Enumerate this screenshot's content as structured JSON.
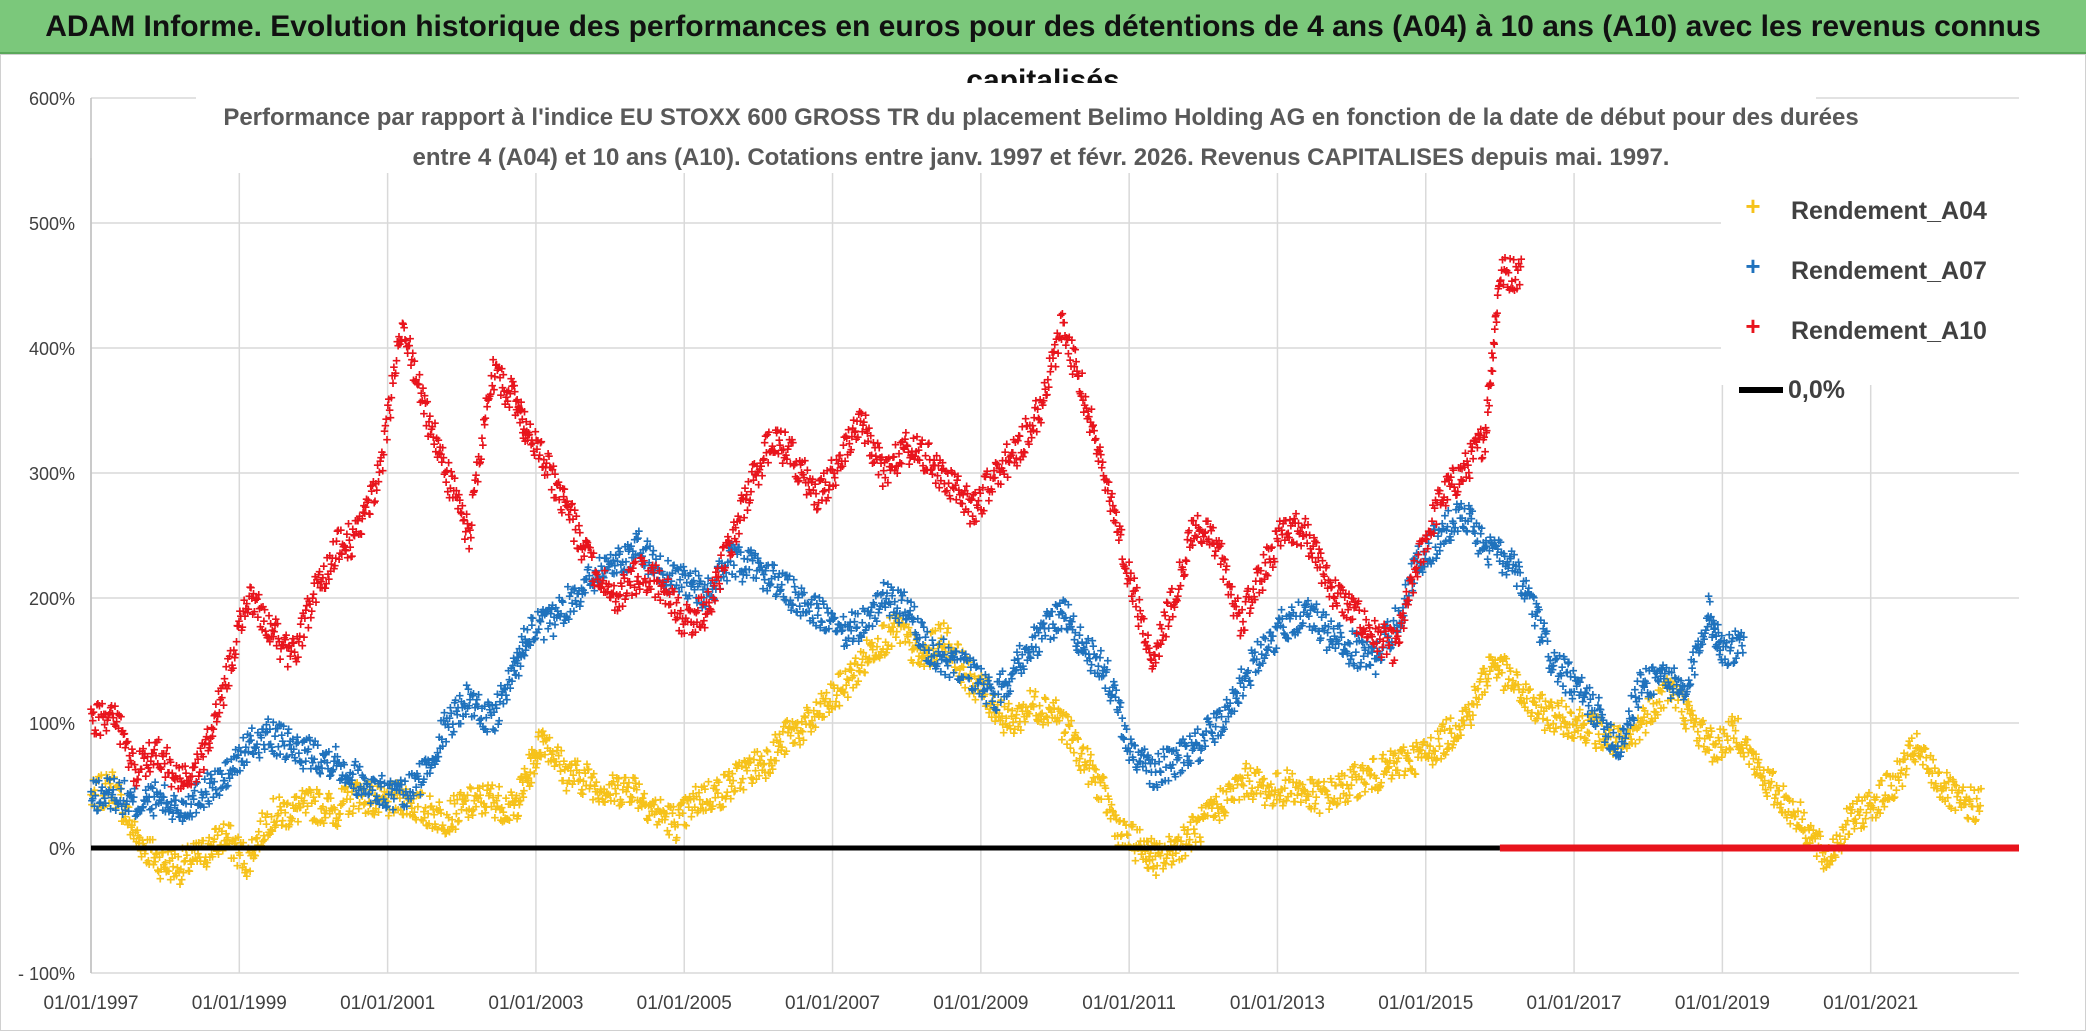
{
  "header": {
    "title": "ADAM Informe. Evolution historique des performances en euros pour des détentions de 4 ans (A04) à 10 ans (A10) avec les revenus connus capitalisés"
  },
  "colors": {
    "banner": "#7bc87b",
    "A04": "#f6c21a",
    "A07": "#1f72bd",
    "A10": "#e8141c",
    "zero": "#000000",
    "grid": "#d9d9d9"
  },
  "chart_data": {
    "type": "scatter",
    "title_line1": "Performance par rapport à l'indice EU STOXX 600 GROSS TR  du placement Belimo Holding AG en fonction de la date de début pour des durées",
    "title_line2": "entre 4 (A04) et 10 ans (A10). Cotations entre janv. 1997 et févr. 2026. Revenus CAPITALISES depuis mai. 1997.",
    "xlabel": "",
    "ylabel": "",
    "x_range": [
      1997.0,
      2023.0
    ],
    "ylim": [
      -100,
      600
    ],
    "y_ticks": [
      -100,
      0,
      100,
      200,
      300,
      400,
      500,
      600
    ],
    "y_tick_labels": [
      "- 100%",
      "0%",
      "100%",
      "200%",
      "300%",
      "400%",
      "500%",
      "600%"
    ],
    "x_ticks": [
      1997,
      1999,
      2001,
      2003,
      2005,
      2007,
      2009,
      2011,
      2013,
      2015,
      2017,
      2019,
      2021
    ],
    "x_tick_labels": [
      "01/01/1997",
      "01/01/1999",
      "01/01/2001",
      "01/01/2003",
      "01/01/2005",
      "01/01/2007",
      "01/01/2009",
      "01/01/2011",
      "01/01/2013",
      "01/01/2015",
      "01/01/2017",
      "01/01/2019",
      "01/01/2021"
    ],
    "legend_position": "top-right",
    "series": [
      {
        "name": "Rendement_A04",
        "x": [
          1997.0,
          1997.3,
          1997.6,
          1997.9,
          1998.2,
          1998.5,
          1998.8,
          1999.1,
          1999.4,
          1999.7,
          2000.0,
          2000.3,
          2000.6,
          2000.9,
          2001.2,
          2001.5,
          2001.8,
          2002.1,
          2002.4,
          2002.7,
          2002.9,
          2003.1,
          2003.4,
          2003.7,
          2004.0,
          2004.3,
          2004.6,
          2004.9,
          2005.2,
          2005.5,
          2005.8,
          2006.1,
          2006.4,
          2006.7,
          2007.0,
          2007.3,
          2007.6,
          2007.9,
          2008.2,
          2008.5,
          2008.8,
          2009.1,
          2009.4,
          2009.7,
          2010.0,
          2010.3,
          2010.6,
          2010.9,
          2011.2,
          2011.4,
          2011.7,
          2012.0,
          2012.3,
          2012.6,
          2012.9,
          2013.2,
          2013.5,
          2013.8,
          2014.1,
          2014.4,
          2014.7,
          2015.0,
          2015.3,
          2015.6,
          2015.9,
          2016.2,
          2016.5,
          2016.8,
          2017.1,
          2017.4,
          2017.7,
          2018.0,
          2018.3,
          2018.6,
          2018.9,
          2019.2,
          2019.5,
          2019.8,
          2020.1,
          2020.4,
          2020.7,
          2021.0,
          2021.3,
          2021.6,
          2021.9,
          2022.2
        ],
        "y": [
          40,
          50,
          10,
          -10,
          -15,
          -5,
          10,
          -10,
          25,
          30,
          35,
          30,
          45,
          35,
          40,
          30,
          25,
          35,
          40,
          30,
          60,
          90,
          60,
          55,
          45,
          50,
          30,
          20,
          40,
          45,
          60,
          70,
          90,
          100,
          120,
          140,
          165,
          175,
          150,
          170,
          140,
          120,
          100,
          115,
          110,
          80,
          50,
          10,
          0,
          -10,
          5,
          20,
          40,
          55,
          45,
          50,
          40,
          45,
          55,
          60,
          70,
          75,
          90,
          110,
          150,
          130,
          110,
          105,
          100,
          90,
          80,
          110,
          130,
          100,
          80,
          95,
          60,
          40,
          20,
          -10,
          20,
          35,
          50,
          80,
          55,
          35
        ]
      },
      {
        "name": "Rendement_A07",
        "x": [
          1997.0,
          1997.3,
          1997.6,
          1997.9,
          1998.2,
          1998.5,
          1998.8,
          1999.1,
          1999.4,
          1999.7,
          2000.0,
          2000.3,
          2000.6,
          2000.9,
          2001.2,
          2001.5,
          2001.8,
          2002.1,
          2002.4,
          2002.7,
          2002.9,
          2003.2,
          2003.5,
          2003.8,
          2004.1,
          2004.4,
          2004.7,
          2005.0,
          2005.3,
          2005.6,
          2005.9,
          2006.2,
          2006.5,
          2006.8,
          2007.1,
          2007.4,
          2007.7,
          2008.0,
          2008.3,
          2008.6,
          2008.9,
          2009.2,
          2009.5,
          2009.8,
          2010.1,
          2010.4,
          2010.7,
          2011.0,
          2011.3,
          2011.6,
          2011.9,
          2012.2,
          2012.5,
          2012.8,
          2013.1,
          2013.4,
          2013.7,
          2014.0,
          2014.3,
          2014.6,
          2014.9,
          2015.2,
          2015.5,
          2015.8,
          2016.1,
          2016.4,
          2016.7,
          2017.0,
          2017.3,
          2017.6,
          2017.9,
          2018.2,
          2018.5,
          2018.8,
          2019.0
        ],
        "y": [
          40,
          45,
          35,
          40,
          30,
          45,
          55,
          80,
          90,
          80,
          75,
          70,
          55,
          45,
          40,
          60,
          100,
          120,
          100,
          140,
          175,
          180,
          200,
          220,
          230,
          240,
          220,
          215,
          200,
          230,
          225,
          215,
          200,
          190,
          170,
          180,
          200,
          190,
          160,
          150,
          140,
          120,
          150,
          170,
          190,
          160,
          140,
          80,
          60,
          70,
          80,
          100,
          130,
          160,
          180,
          190,
          170,
          160,
          150,
          180,
          230,
          250,
          270,
          240,
          230,
          200,
          150,
          130,
          110,
          80,
          130,
          140,
          120,
          190,
          160
        ]
      },
      {
        "name": "Rendement_A10",
        "x": [
          1997.0,
          1997.3,
          1997.6,
          1997.9,
          1998.2,
          1998.5,
          1998.8,
          1999.1,
          1999.4,
          1999.7,
          2000.0,
          2000.3,
          2000.6,
          2000.9,
          2001.2,
          2001.5,
          2001.8,
          2002.1,
          2002.4,
          2002.7,
          2002.9,
          2003.2,
          2003.5,
          2003.8,
          2004.1,
          2004.4,
          2004.7,
          2005.0,
          2005.3,
          2005.6,
          2005.9,
          2006.2,
          2006.5,
          2006.8,
          2007.1,
          2007.4,
          2007.7,
          2008.0,
          2008.3,
          2008.6,
          2008.9,
          2009.2,
          2009.5,
          2009.8,
          2010.1,
          2010.4,
          2010.7,
          2011.0,
          2011.3,
          2011.6,
          2011.9,
          2012.2,
          2012.5,
          2012.8,
          2013.1,
          2013.4,
          2013.7,
          2014.0,
          2014.3,
          2014.6,
          2014.9,
          2015.2,
          2015.5,
          2015.8,
          2016.0
        ],
        "y": [
          100,
          110,
          60,
          80,
          50,
          70,
          130,
          200,
          180,
          150,
          200,
          240,
          250,
          300,
          420,
          350,
          300,
          250,
          380,
          360,
          330,
          300,
          260,
          220,
          200,
          220,
          210,
          180,
          190,
          240,
          290,
          330,
          310,
          280,
          310,
          340,
          300,
          320,
          310,
          290,
          270,
          300,
          320,
          350,
          420,
          360,
          290,
          220,
          150,
          200,
          260,
          240,
          180,
          220,
          260,
          250,
          210,
          190,
          170,
          160,
          230,
          280,
          300,
          330,
          460
        ]
      }
    ],
    "zero_line_label": "0,0%",
    "a10_zero_segment_x": [
      2016.0,
      2023.0
    ]
  }
}
